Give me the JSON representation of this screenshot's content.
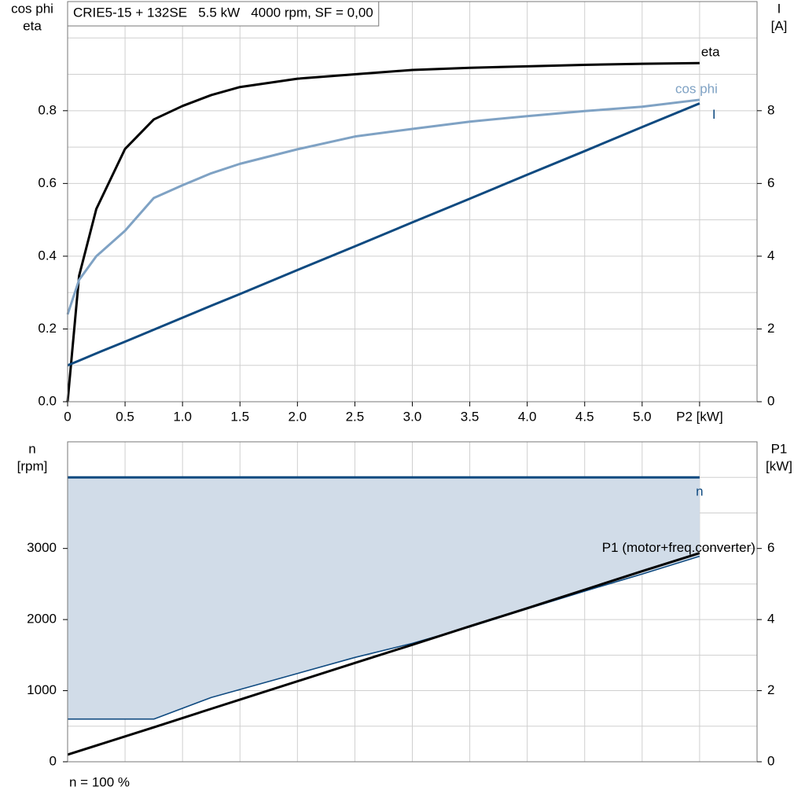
{
  "chart_data": [
    {
      "type": "line",
      "title": "CRIE5-15 + 132SE   5.5 kW   4000 rpm, SF = 0,00",
      "ylabel": [
        "cos phi",
        "eta"
      ],
      "y2label": [
        "I",
        "[A]"
      ],
      "x": [
        0,
        0.1,
        0.25,
        0.5,
        0.75,
        1,
        1.25,
        1.5,
        2,
        2.5,
        3,
        3.5,
        4,
        4.5,
        5,
        5.5
      ],
      "series": [
        {
          "name": "eta",
          "color": "#000000",
          "values": [
            0,
            0.346,
            0.53,
            0.695,
            0.776,
            0.813,
            0.843,
            0.865,
            0.888,
            0.9,
            0.912,
            0.918,
            0.922,
            0.926,
            0.929,
            0.931
          ]
        },
        {
          "name": "cos phi",
          "color": "#7fa2c4",
          "values": [
            0.24,
            0.335,
            0.4,
            0.47,
            0.56,
            0.595,
            0.628,
            0.654,
            0.694,
            0.729,
            0.75,
            0.77,
            0.785,
            0.799,
            0.811,
            0.83
          ]
        },
        {
          "name": "I",
          "color": "#0f4a80",
          "axis": "y2",
          "values": [
            1.0,
            1.13,
            1.33,
            1.65,
            1.98,
            2.31,
            2.64,
            2.96,
            3.62,
            4.27,
            4.93,
            5.58,
            6.24,
            6.89,
            7.55,
            8.2
          ]
        }
      ],
      "xlim": [
        0,
        6
      ],
      "xticks": [
        0,
        0.5,
        {
          "value": 1,
          "label": "1.0"
        },
        1.5,
        {
          "value": 2,
          "label": "2.0"
        },
        2.5,
        {
          "value": 3,
          "label": "3.0"
        },
        3.5,
        {
          "value": 4,
          "label": "4.0"
        },
        4.5,
        {
          "value": 5,
          "label": "5.0"
        },
        {
          "value": 5.5,
          "label": "P2 [kW]"
        }
      ],
      "xtick_labels": true,
      "xgrid": [
        0.5,
        1,
        1.5,
        2,
        2.5,
        3,
        3.5,
        4,
        4.5,
        5,
        5.5
      ],
      "ylim": [
        0,
        1.1
      ],
      "yticks": [
        {
          "value": 0,
          "label": "0.0"
        },
        0.2,
        0.4,
        0.6,
        0.8
      ],
      "ygrid": [
        0.1,
        0.2,
        0.3,
        0.4,
        0.5,
        0.6,
        0.7,
        0.8,
        0.9,
        1.0
      ],
      "y2lim": [
        0,
        11
      ],
      "y2ticks": [
        0,
        2,
        4,
        6,
        8
      ]
    },
    {
      "type": "line",
      "ylabel": [
        "n",
        "[rpm]"
      ],
      "y2label": [
        "P1",
        "[kW]"
      ],
      "footnote": "n = 100 %",
      "x": [
        0,
        0.75,
        1.25,
        2.5,
        3,
        3.5,
        4,
        4.5,
        5,
        5.5
      ],
      "series": [
        {
          "color": "#0f4a80",
          "fill": "#d1dce8",
          "fill_to_series": 1,
          "values": [
            600,
            600,
            904,
            1467,
            1665,
            1897,
            2150,
            2400,
            2640,
            2890
          ]
        },
        {
          "name": "n",
          "color": "#0f4a80",
          "values": [
            4000,
            4000,
            4000,
            4000,
            4000,
            4000,
            4000,
            4000,
            4000,
            4000
          ]
        },
        {
          "name": "P1 (motor+freq.converter)",
          "color": "#000000",
          "axis": "y2",
          "values": [
            0.2,
            0.97,
            1.49,
            2.78,
            3.29,
            3.81,
            4.32,
            4.84,
            5.36,
            5.87
          ]
        }
      ],
      "xlim": [
        0,
        6
      ],
      "xtick_labels": false,
      "xgrid": [
        0.5,
        1,
        1.5,
        2,
        2.5,
        3,
        3.5,
        4,
        4.5,
        5,
        5.5
      ],
      "ylim": [
        0,
        4500
      ],
      "yticks": [
        0,
        1000,
        2000,
        3000
      ],
      "ygrid": [
        500,
        1000,
        1500,
        2000,
        2500,
        3000,
        3500,
        4000
      ],
      "y2lim": [
        0,
        9
      ],
      "y2ticks": [
        0,
        2,
        4,
        6
      ]
    }
  ]
}
